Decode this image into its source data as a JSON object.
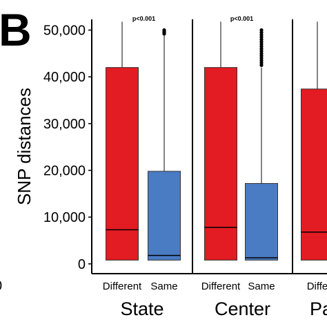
{
  "panel_letter": "B",
  "left_crop_text": "0",
  "chart_data": {
    "type": "boxplot",
    "ylabel": "SNP distances",
    "ylim": [
      -1500,
      52000
    ],
    "yticks": [
      0,
      10000,
      20000,
      30000,
      40000,
      50000
    ],
    "ytick_labels": [
      "0",
      "10,000",
      "20,000",
      "30,000",
      "40,000",
      "50,000"
    ],
    "panels": [
      {
        "title": "State",
        "pvalue": "p<0.001",
        "categories": [
          "Different",
          "Same"
        ],
        "boxes": [
          {
            "category": "Different",
            "color": "#e31b23",
            "min": 800,
            "q1": 800,
            "median": 7300,
            "q3": 42000,
            "max": 51800,
            "outliers": []
          },
          {
            "category": "Same",
            "color": "#4a7cc4",
            "min": 800,
            "q1": 800,
            "median": 1800,
            "q3": 19800,
            "max": 49000,
            "outliers": [
              49200,
              49400,
              49600,
              49800,
              50000
            ]
          }
        ]
      },
      {
        "title": "Center",
        "pvalue": "p<0.001",
        "categories": [
          "Different",
          "Same"
        ],
        "boxes": [
          {
            "category": "Different",
            "color": "#e31b23",
            "min": 800,
            "q1": 800,
            "median": 7800,
            "q3": 42000,
            "max": 51800,
            "outliers": []
          },
          {
            "category": "Same",
            "color": "#4a7cc4",
            "min": 800,
            "q1": 800,
            "median": 1300,
            "q3": 17200,
            "max": 42000,
            "outliers": [
              42500,
              43000,
              43500,
              44000,
              44500,
              45000,
              45500,
              46000,
              46500,
              47000,
              47500,
              48000,
              48500,
              49000,
              49500,
              50000
            ]
          }
        ]
      },
      {
        "title": "Pa",
        "pvalue": "",
        "categories": [
          "Diffe"
        ],
        "boxes": [
          {
            "category": "Diffe",
            "color": "#e31b23",
            "min": 800,
            "q1": 800,
            "median": 6800,
            "q3": 37400,
            "max": 51800,
            "outliers": []
          }
        ]
      }
    ]
  }
}
